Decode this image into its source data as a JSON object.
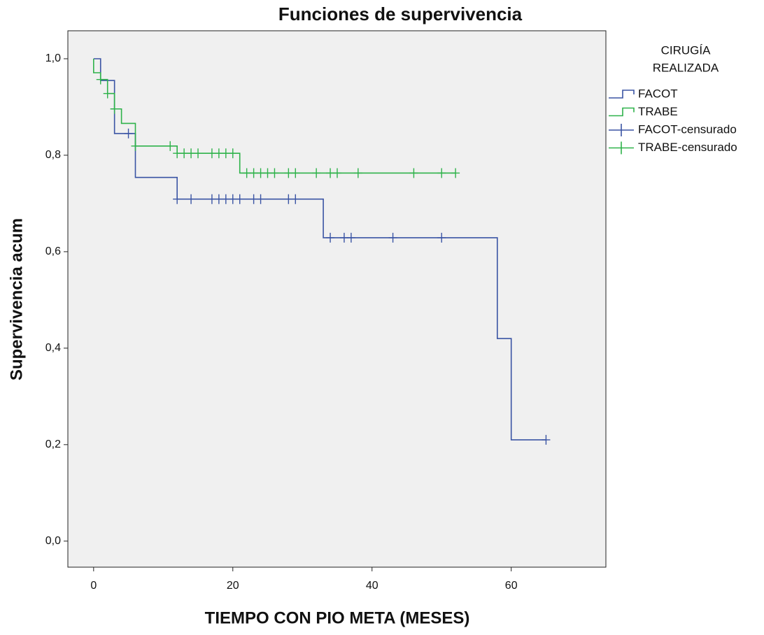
{
  "chart_data": {
    "type": "survival",
    "title": "Funciones de supervivencia",
    "x_label": "TIEMPO CON PIO META (MESES)",
    "y_label": "Supervivencia acum",
    "xlim": [
      -3.7,
      73.6
    ],
    "ylim": [
      -0.054,
      1.058
    ],
    "xticks": [
      0,
      20,
      40,
      60
    ],
    "yticks": [
      {
        "value": 0,
        "label": "0,0"
      },
      {
        "value": 0.2,
        "label": "0,2"
      },
      {
        "value": 0.4,
        "label": "0,4"
      },
      {
        "value": 0.6,
        "label": "0,6"
      },
      {
        "value": 0.8,
        "label": "0,8"
      },
      {
        "value": 1,
        "label": "1,0"
      }
    ],
    "legend": {
      "title": [
        "CIRUGÍA",
        "REALIZADA"
      ],
      "position": "right"
    },
    "series": [
      {
        "name": "FACOT",
        "style": "step",
        "color": "#3a54a4",
        "x": [
          0,
          1,
          3,
          6,
          12,
          33,
          58,
          60,
          65
        ],
        "values": [
          1,
          0.955,
          0.845,
          0.754,
          0.709,
          0.629,
          0.42,
          0.21,
          0.21
        ]
      },
      {
        "name": "TRABE",
        "style": "step",
        "color": "#2eb24a",
        "x": [
          0,
          0,
          1,
          2,
          3,
          4,
          6,
          12,
          21,
          52
        ],
        "values": [
          1,
          0.971,
          0.957,
          0.928,
          0.896,
          0.866,
          0.819,
          0.804,
          0.763,
          0.763
        ]
      },
      {
        "name": "FACOT-censurado",
        "style": "censored",
        "color": "#3a54a4",
        "x": [
          5,
          12,
          14,
          17,
          18,
          19,
          20,
          21,
          23,
          24,
          28,
          29,
          34,
          36,
          37,
          43,
          50,
          65
        ],
        "values": [
          0.845,
          0.709,
          0.709,
          0.709,
          0.709,
          0.709,
          0.709,
          0.709,
          0.709,
          0.709,
          0.709,
          0.709,
          0.629,
          0.629,
          0.629,
          0.629,
          0.629,
          0.21
        ]
      },
      {
        "name": "TRABE-censurado",
        "style": "censored",
        "color": "#2eb24a",
        "x": [
          1,
          2,
          3,
          6,
          11,
          12,
          13,
          14,
          15,
          17,
          18,
          19,
          20,
          22,
          23,
          24,
          25,
          26,
          28,
          29,
          32,
          34,
          35,
          38,
          46,
          50,
          52
        ],
        "values": [
          0.957,
          0.928,
          0.896,
          0.819,
          0.819,
          0.804,
          0.804,
          0.804,
          0.804,
          0.804,
          0.804,
          0.804,
          0.804,
          0.763,
          0.763,
          0.763,
          0.763,
          0.763,
          0.763,
          0.763,
          0.763,
          0.763,
          0.763,
          0.763,
          0.763,
          0.763,
          0.763
        ]
      }
    ]
  }
}
